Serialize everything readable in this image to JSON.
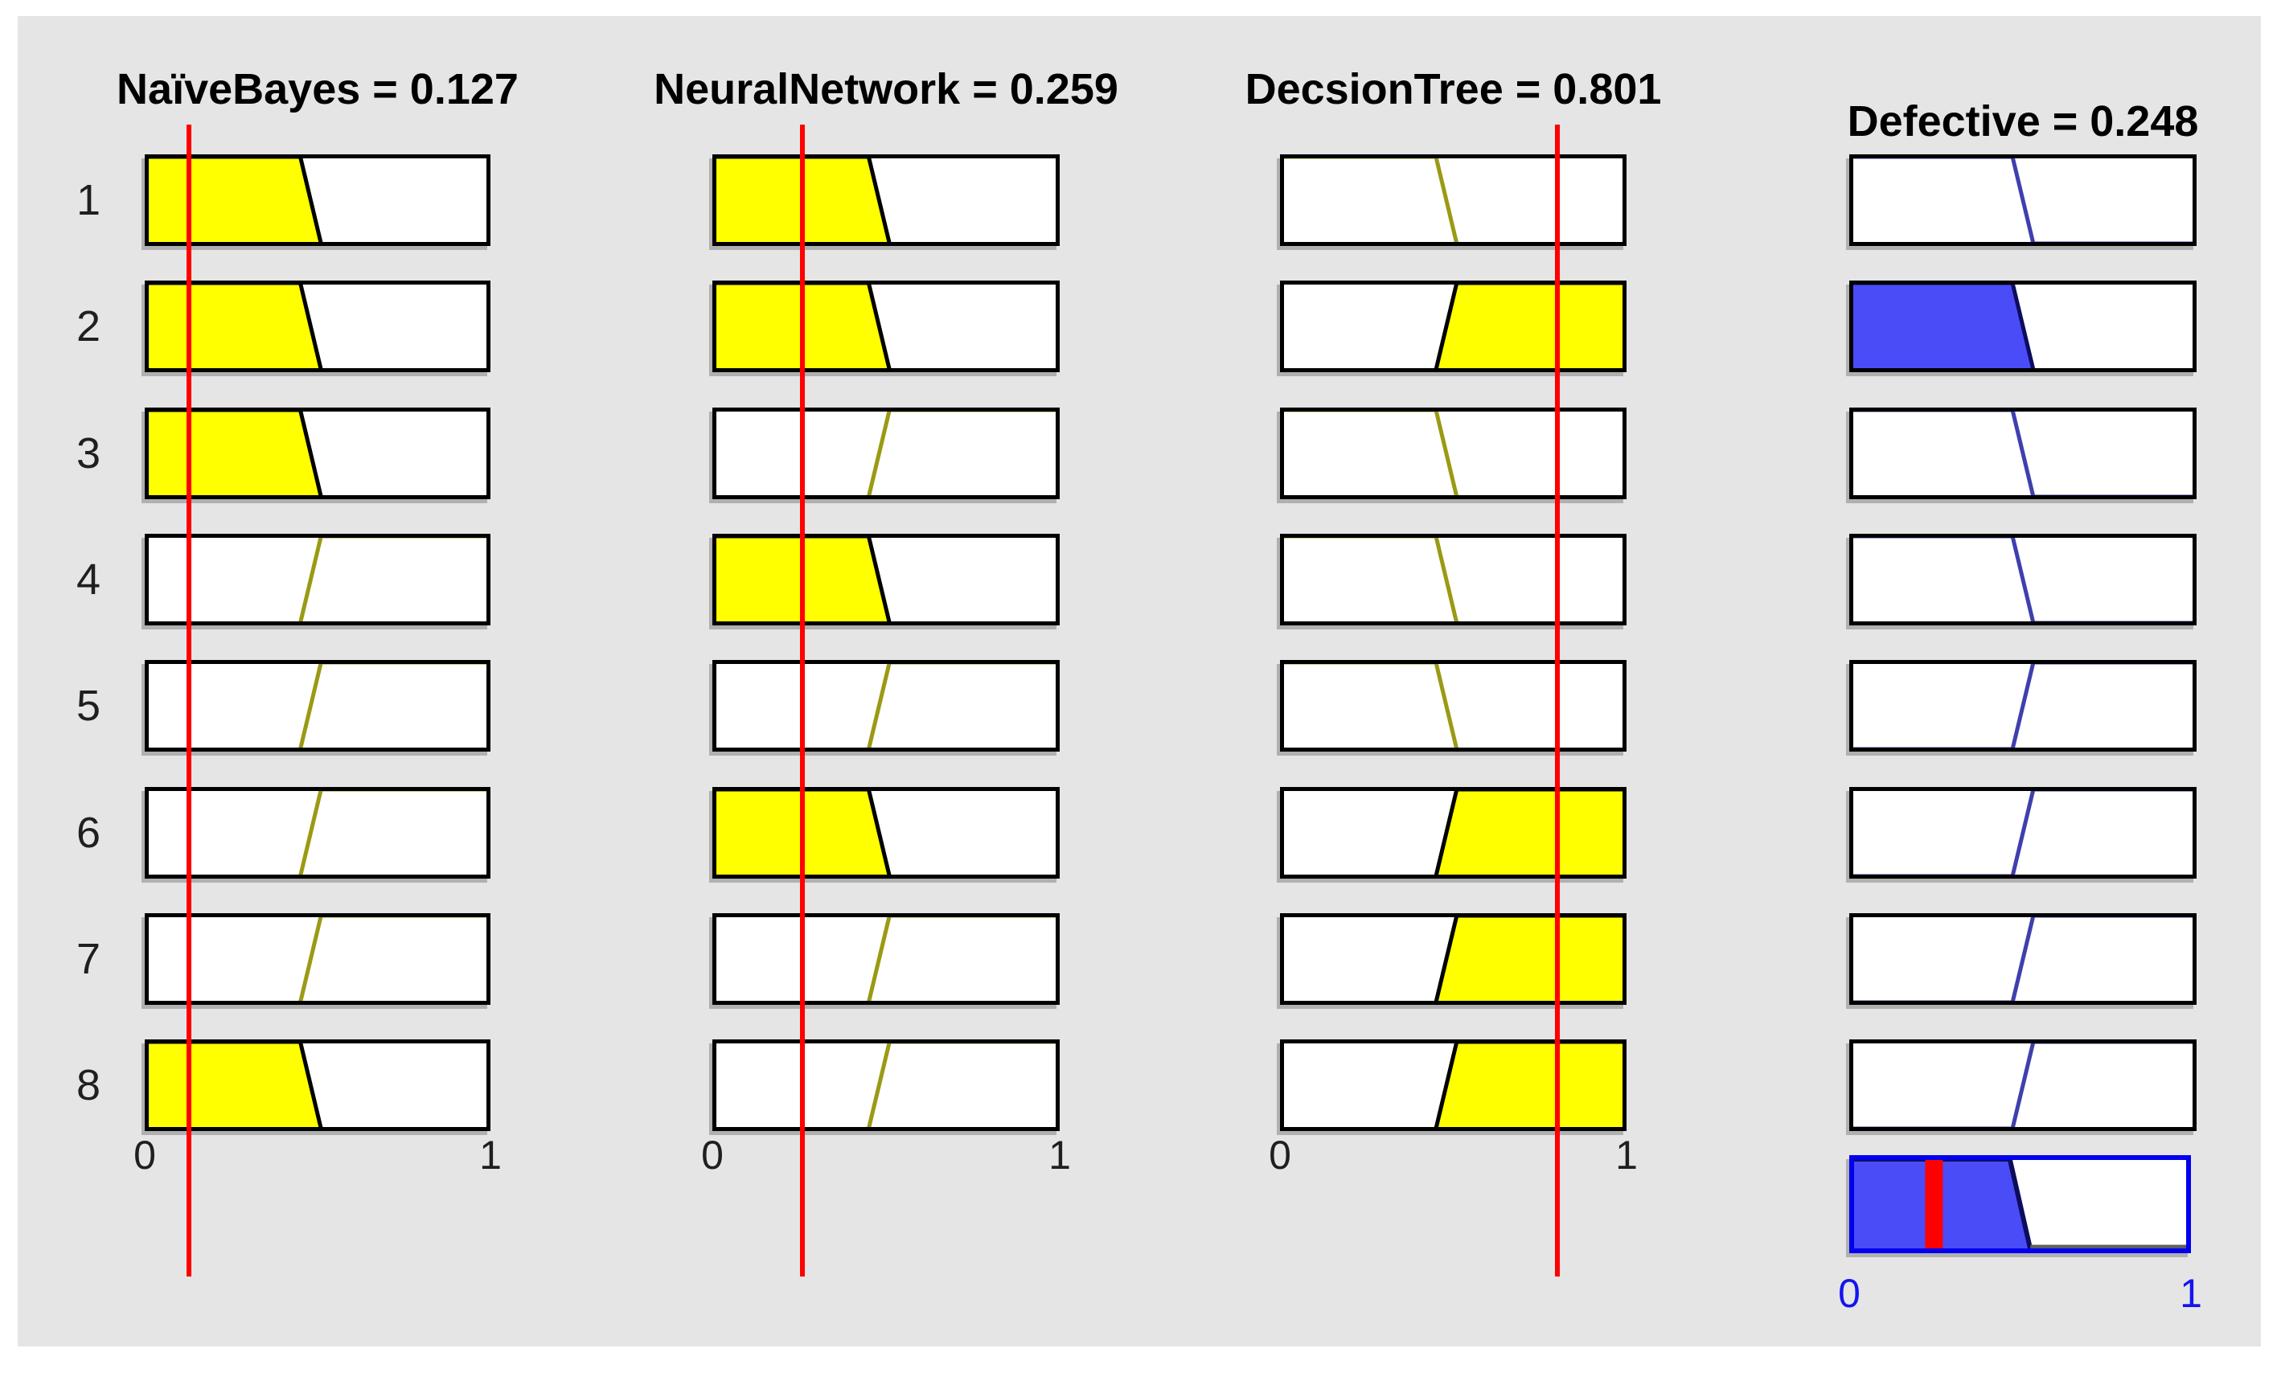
{
  "viewer": {
    "rows": [
      "1",
      "2",
      "3",
      "4",
      "5",
      "6",
      "7",
      "8"
    ],
    "axis": {
      "min": "0",
      "max": "1"
    },
    "variables": [
      {
        "name": "NaïveBayes",
        "role": "input",
        "title": "NaïveBayes = 0.127",
        "value": 0.127,
        "rule_mfs": [
          "low",
          "low",
          "low",
          "high",
          "high",
          "high",
          "high",
          "low"
        ],
        "rule_fired": [
          true,
          true,
          true,
          false,
          false,
          false,
          false,
          true
        ]
      },
      {
        "name": "NeuralNetwork",
        "role": "input",
        "title": "NeuralNetwork = 0.259",
        "value": 0.259,
        "rule_mfs": [
          "low",
          "low",
          "high",
          "low",
          "high",
          "low",
          "high",
          "high"
        ],
        "rule_fired": [
          true,
          true,
          false,
          true,
          false,
          true,
          false,
          false
        ]
      },
      {
        "name": "DecsionTree",
        "role": "input",
        "title": "DecsionTree = 0.801",
        "value": 0.801,
        "rule_mfs": [
          "low",
          "high",
          "low",
          "low",
          "low",
          "high",
          "high",
          "high"
        ],
        "rule_fired": [
          false,
          true,
          false,
          false,
          false,
          true,
          true,
          true
        ]
      },
      {
        "name": "Defective",
        "role": "output",
        "title": "Defective = 0.248",
        "value": 0.248,
        "rule_mfs": [
          "low",
          "low",
          "low",
          "low",
          "high",
          "high",
          "high",
          "high"
        ],
        "rule_fired": [
          false,
          true,
          false,
          false,
          false,
          false,
          false,
          false
        ],
        "aggregate": {
          "mf": "low",
          "value": 0.248
        }
      }
    ],
    "colors": {
      "panel_bg": "#e5e5e5",
      "plot_bg": "#ffffff",
      "box_border": "#000000",
      "input_fill": "#ffff00",
      "input_curve": "#9a9a14",
      "input_curve_active": "#000000",
      "output_fill": "#4a4cf8",
      "output_curve": "#3f3fae",
      "output_curve_active": "#0d0d5e",
      "aggregate_border": "#0000ee",
      "aggregate_baseline": "#5f5f5f",
      "value_line": "#ff0000",
      "output_axis_label": "#1515ee"
    }
  }
}
